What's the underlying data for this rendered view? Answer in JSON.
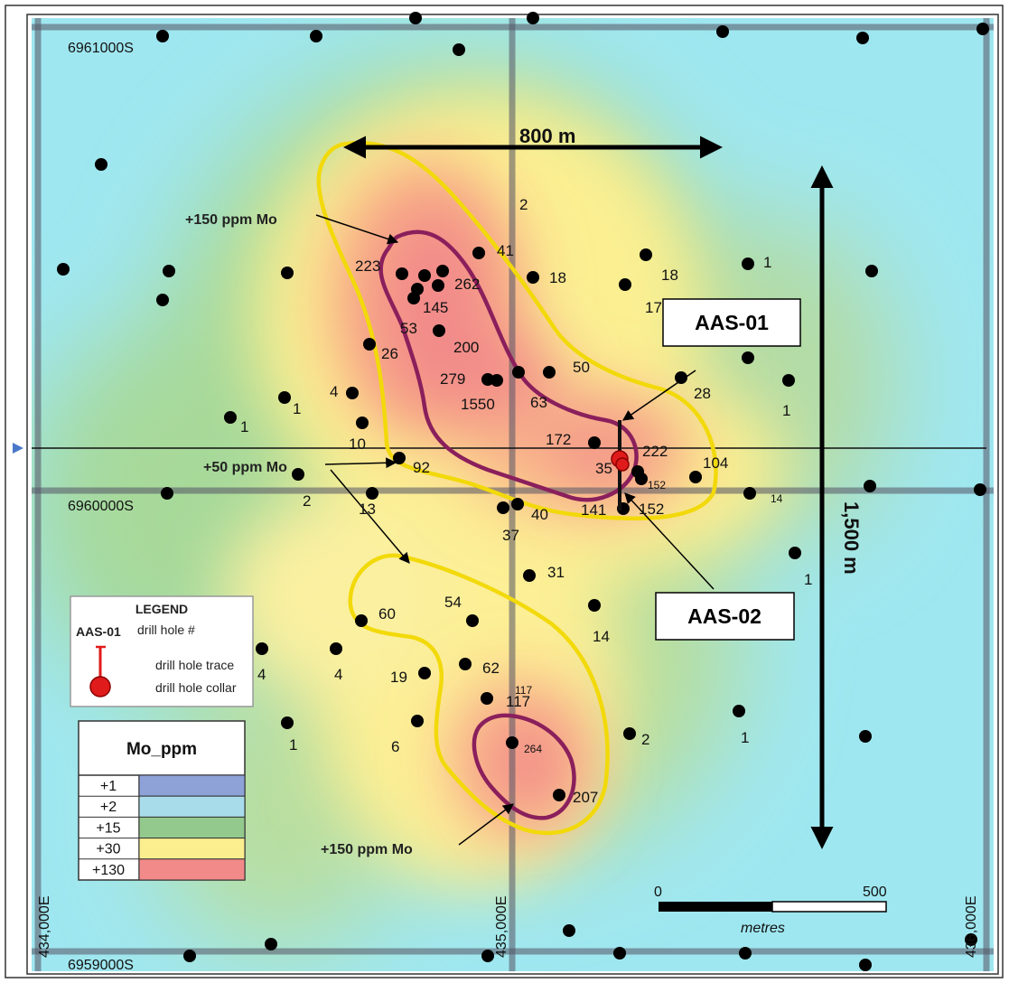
{
  "coordinates": {
    "north_top": "6961000S",
    "north_mid": "6960000S",
    "north_bottom": "6959000S",
    "east_left": "434,000E",
    "east_mid": "435,000E",
    "east_right": "436,000E"
  },
  "dimensions": {
    "width_label": "800 m",
    "height_label": "1,500 m"
  },
  "annotations": {
    "upper_150": "+150 ppm Mo",
    "lower_150": "+150 ppm Mo",
    "mid_50": "+50 ppm Mo"
  },
  "drill_holes": [
    {
      "id": "AAS-01"
    },
    {
      "id": "AAS-02"
    }
  ],
  "sample_values": [
    {
      "v": "2"
    },
    {
      "v": "41"
    },
    {
      "v": "18"
    },
    {
      "v": "18"
    },
    {
      "v": "1"
    },
    {
      "v": "223"
    },
    {
      "v": "262"
    },
    {
      "v": "17"
    },
    {
      "v": "145"
    },
    {
      "v": "53"
    },
    {
      "v": "200"
    },
    {
      "v": "26"
    },
    {
      "v": "50"
    },
    {
      "v": "279"
    },
    {
      "v": "28"
    },
    {
      "v": "4"
    },
    {
      "v": "1550"
    },
    {
      "v": "63"
    },
    {
      "v": "1"
    },
    {
      "v": "1"
    },
    {
      "v": "1"
    },
    {
      "v": "172"
    },
    {
      "v": "222"
    },
    {
      "v": "10"
    },
    {
      "v": "104"
    },
    {
      "v": "92"
    },
    {
      "v": "35"
    },
    {
      "v": "152"
    },
    {
      "v": "14"
    },
    {
      "v": "2"
    },
    {
      "v": "13"
    },
    {
      "v": "40"
    },
    {
      "v": "141"
    },
    {
      "v": "152"
    },
    {
      "v": "37"
    },
    {
      "v": "31"
    },
    {
      "v": "1"
    },
    {
      "v": "54"
    },
    {
      "v": "60"
    },
    {
      "v": "14"
    },
    {
      "v": "62"
    },
    {
      "v": "4"
    },
    {
      "v": "4"
    },
    {
      "v": "19"
    },
    {
      "v": "117"
    },
    {
      "v": "117"
    },
    {
      "v": "1"
    },
    {
      "v": "6"
    },
    {
      "v": "2"
    },
    {
      "v": "1"
    },
    {
      "v": "264"
    },
    {
      "v": "207"
    }
  ],
  "legend": {
    "title": "LEGEND",
    "hole_id_sample": "AAS-01",
    "hole_id_desc": "drill hole #",
    "trace_desc": "drill hole trace",
    "collar_desc": "drill hole collar"
  },
  "mo_table": {
    "header": "Mo_ppm",
    "rows": [
      {
        "label": "+1",
        "color": "#8ea2d8"
      },
      {
        "label": "+2",
        "color": "#a9dcea"
      },
      {
        "label": "+15",
        "color": "#93c98d"
      },
      {
        "label": "+30",
        "color": "#fbee8f"
      },
      {
        "label": "+130",
        "color": "#f28a8a"
      }
    ]
  },
  "scale_bar": {
    "start": "0",
    "end": "500",
    "unit": "metres"
  },
  "colors": {
    "high": "#f28a8a",
    "mid": "#fbee8f",
    "low_green": "#93c98d",
    "low_cyan": "#a9e6ef",
    "contour_150": "#8a1f5c",
    "contour_50": "#f2d90a",
    "collar": "#e01b1b"
  }
}
